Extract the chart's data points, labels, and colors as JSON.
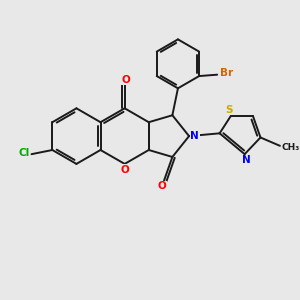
{
  "bg_color": "#e8e8e8",
  "bond_color": "#1a1a1a",
  "bond_width": 1.4,
  "atom_colors": {
    "O": "#ff0000",
    "N": "#0000ee",
    "S": "#ccaa00",
    "Cl": "#00aa00",
    "Br": "#cc6600",
    "C": "#1a1a1a"
  },
  "font_size": 7.5
}
